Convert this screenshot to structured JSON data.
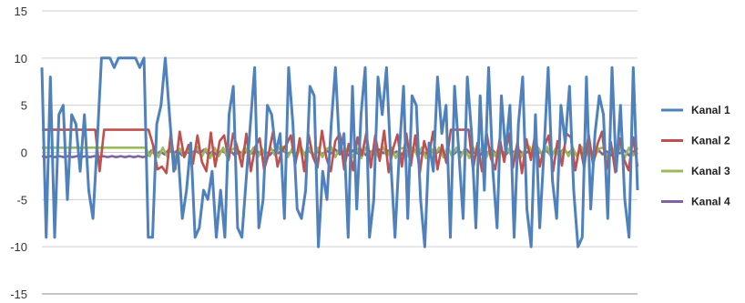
{
  "chart_data": {
    "type": "line",
    "title": "",
    "xlabel": "",
    "ylabel": "",
    "ylim": [
      -15,
      15
    ],
    "yticks": [
      15,
      10,
      5,
      0,
      -5,
      -10,
      -15
    ],
    "grid": "horizontal",
    "legend_position": "right",
    "series": [
      {
        "name": "Kanal 1",
        "color": "#4F81BD",
        "values": [
          9,
          -9,
          8,
          -9,
          4,
          5,
          -5,
          4,
          3,
          -2,
          4,
          -4,
          -7,
          1,
          10,
          10,
          10,
          9,
          10,
          10,
          10,
          10,
          10,
          9,
          10,
          -9,
          -9,
          3,
          5,
          10,
          4,
          -2,
          0,
          -7,
          -4,
          1,
          -9,
          -8,
          -4,
          -5,
          -2,
          -9,
          -4,
          -9,
          4,
          7,
          -8,
          -9,
          -3,
          3,
          9,
          -8,
          -5,
          5,
          4,
          0,
          2,
          -7,
          9,
          3,
          -6,
          -7,
          -4,
          7,
          6,
          -10,
          -2,
          -5,
          3,
          9,
          0,
          2,
          -9,
          7,
          -6,
          4,
          9,
          -9,
          -5,
          8,
          4,
          9,
          -1,
          -9,
          0,
          7,
          -7,
          6,
          5,
          -5,
          -10,
          1,
          -2,
          8,
          2,
          5,
          -9,
          7,
          0,
          -7,
          8,
          2,
          -8,
          6,
          -4,
          9,
          -2,
          -8,
          6,
          0,
          5,
          -9,
          3,
          8,
          -6,
          -10,
          4,
          -8,
          0,
          9,
          -3,
          -7,
          5,
          1,
          7,
          -4,
          -10,
          -9,
          8,
          -6,
          2,
          6,
          4,
          -7,
          9,
          -2,
          5,
          -5,
          -9,
          9,
          -4
        ]
      },
      {
        "name": "Kanal 2",
        "color": "#C0504D",
        "values": [
          2.4,
          2.4,
          2.4,
          2.4,
          2.4,
          2.4,
          2.4,
          2.4,
          2.4,
          2.4,
          2.4,
          2.4,
          2.4,
          -2.0,
          2.4,
          2.4,
          2.4,
          2.4,
          2.4,
          2.4,
          2.4,
          2.4,
          2.4,
          2.4,
          2.4,
          0.8,
          -1.8,
          -1.5,
          -2.2,
          2,
          -1.8,
          2.2,
          -0.5,
          0.8,
          -1.2,
          1.8,
          -1,
          -2,
          2.1,
          -1.5,
          1.2,
          1.8,
          -0.8,
          2,
          0.5,
          -1.5,
          2,
          -2,
          0.6,
          1.5,
          -1.8,
          -0.2,
          2.2,
          -1.5,
          0.2,
          0.8,
          1.8,
          -1.3,
          1.5,
          -2,
          1.9,
          -0.5,
          -1.6,
          2.3,
          -0.6,
          -2,
          1.2,
          2,
          -1.8,
          0.9,
          -1.9,
          1.6,
          -0.3,
          2.1,
          -1.6,
          1.8,
          -0.9,
          2.3,
          -2.1,
          0.4,
          1.9,
          -1.5,
          2,
          -1.4,
          1.8,
          -2.2,
          1.2,
          -0.5,
          2.2,
          -1.8,
          0.8,
          -1.1,
          2.4,
          2.4,
          2.4,
          2.4,
          2.4,
          -1.8,
          1,
          -2,
          2.2,
          -0.6,
          -1.8,
          1.5,
          -1,
          2,
          -1.6,
          1.1,
          -2.2,
          1.4,
          -0.8,
          2,
          -1.5,
          0.6,
          1.8,
          -2,
          1.2,
          -1.4,
          2,
          1.6,
          -1.9,
          0.8,
          -1.6,
          1.9,
          -1.3,
          0.9,
          2.2,
          -1.8,
          1.1,
          -2.1,
          1.5,
          -0.8,
          -1.9,
          1.6,
          -1.5
        ]
      },
      {
        "name": "Kanal 3",
        "color": "#9BBB59",
        "values": [
          0.5,
          0.5,
          0.5,
          0.5,
          0.5,
          0.5,
          0.5,
          0.5,
          0.5,
          0.5,
          0.5,
          0.5,
          0.5,
          0.5,
          0.5,
          0.5,
          0.5,
          0.5,
          0.5,
          0.5,
          0.5,
          0.5,
          0.5,
          0.5,
          0.5,
          -0.4,
          0.6,
          -0.5,
          0.5,
          -0.4,
          0.5,
          -0.6,
          0.4,
          -0.5,
          0.5,
          -0.3,
          0.6,
          -0.5,
          0.4,
          -0.6,
          0.5,
          -0.4,
          0.5,
          -0.6,
          0.3,
          0.5,
          -0.5,
          0.6,
          -0.4,
          0.5,
          -0.5,
          0.4,
          -0.6,
          0.5,
          -0.3,
          0.5,
          0.6,
          -0.5,
          0.4,
          -0.5,
          0.6,
          -0.4,
          0.5,
          -0.6,
          0.5,
          -0.5,
          0.4,
          0.6,
          -0.5,
          0.5,
          -0.4,
          0.6,
          -0.5,
          0.4,
          -0.6,
          0.5,
          -0.4,
          0.5,
          -0.5,
          0.6,
          -0.4,
          0.5,
          -0.6,
          0.4,
          0.5,
          -0.5,
          0.6,
          -0.4,
          0.5,
          -0.6,
          0.5,
          -0.3,
          0.5,
          -0.5,
          0.6,
          -0.4,
          0.5,
          -0.5,
          0.4,
          -0.6,
          0.5,
          -0.4,
          0.6,
          -0.5,
          0.5,
          -0.4,
          0.6,
          -0.5,
          0.4,
          -0.6,
          0.5,
          -0.5,
          0.4,
          0.6,
          -0.5,
          0.5,
          -0.4,
          0.6,
          -0.5,
          0.4,
          -0.6,
          0.5,
          -0.4,
          0.5,
          -0.5,
          0.6,
          -0.4,
          0.5,
          -0.6,
          0.4,
          0.5,
          -0.5,
          0.6,
          -0.4,
          0.5,
          -0.6,
          0.5,
          -0.3,
          0.5
        ]
      },
      {
        "name": "Kanal 4",
        "color": "#8064A2",
        "values": [
          -0.4,
          -0.5,
          -0.4,
          -0.5,
          -0.4,
          -0.5,
          -0.4,
          -0.5,
          -0.4,
          -0.5,
          -0.4,
          -0.5,
          -0.4,
          -0.5,
          -0.4,
          -0.5,
          -0.4,
          -0.5,
          -0.4,
          -0.5,
          -0.4,
          -0.5,
          -0.4,
          -0.5,
          -0.4,
          0.2,
          -0.3,
          0.1,
          -0.2,
          0.3,
          -0.1,
          0.2,
          -0.3,
          0.1,
          -0.2,
          0.2,
          -0.1,
          0.3,
          -0.2,
          0.1,
          -0.3,
          0.2,
          -0.1,
          0.2,
          -0.3,
          0.1,
          -0.2,
          0.3,
          -0.1,
          0.2,
          -0.2,
          0.1,
          -0.3,
          0.2,
          -0.1,
          0.3,
          -0.2,
          0.1,
          -0.2,
          0.3,
          -0.1,
          0.2,
          -0.3,
          0.1,
          -0.2,
          0.2,
          -0.1,
          0.3,
          -0.2,
          0.1,
          -0.3,
          0.2,
          -0.1,
          0.2,
          -0.3,
          0.1,
          -0.2,
          0.3,
          -0.1,
          0.2,
          -0.2,
          0.1,
          -0.3,
          0.2,
          -0.1,
          0.3,
          -0.2,
          0.1,
          -0.2,
          0.3,
          -0.1,
          0.2,
          -0.3,
          0.1,
          -0.2,
          0.2,
          -0.1,
          0.3,
          -0.2,
          0.1,
          -0.3,
          0.2,
          -0.1,
          0.2,
          -0.3,
          0.1,
          -0.2,
          0.3,
          -0.1,
          0.2,
          -0.2,
          0.1,
          -0.3,
          0.2,
          -0.1,
          0.3,
          -0.2,
          0.1,
          -0.2,
          0.3,
          -0.1,
          0.2,
          -0.3,
          0.1,
          -0.2,
          0.2,
          -0.1,
          0.3,
          -0.2,
          0.1,
          -0.3,
          0.2,
          -0.1,
          0.2,
          -0.3,
          0.1,
          -0.2
        ]
      }
    ]
  }
}
